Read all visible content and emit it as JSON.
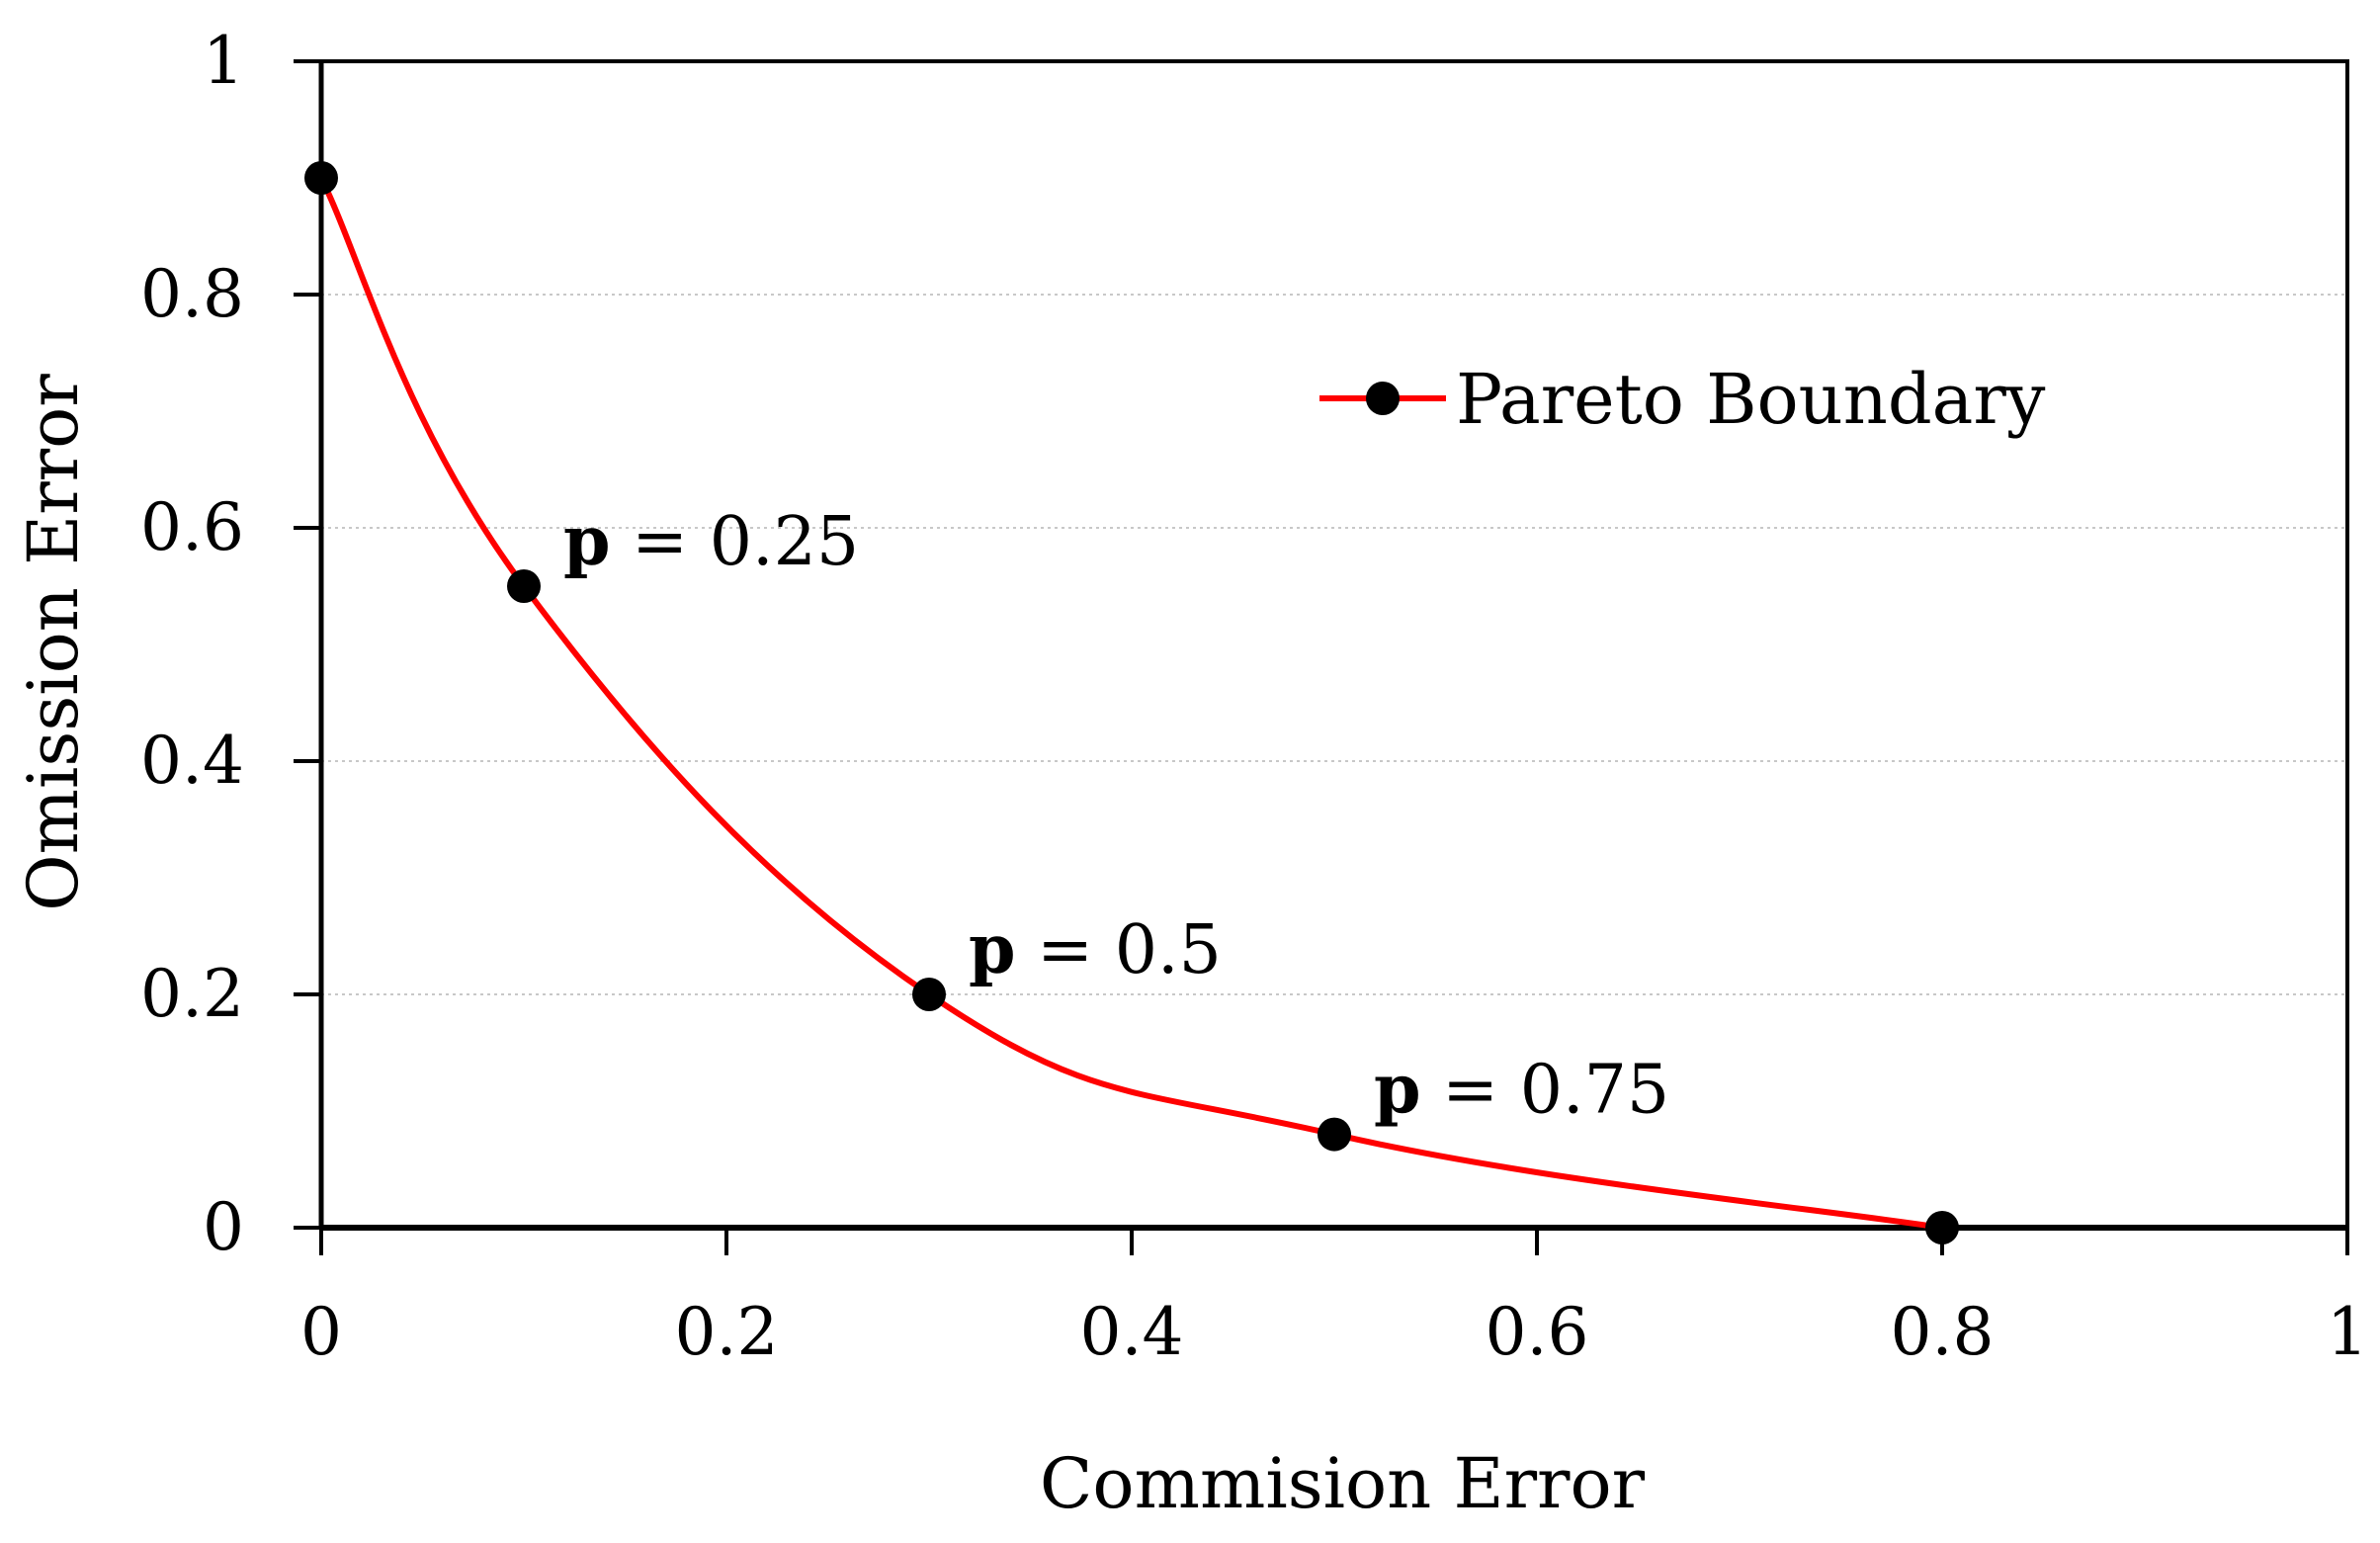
{
  "chart_data": {
    "type": "line",
    "title": "",
    "xlabel": "Commision Error",
    "ylabel": "Omission Error",
    "xlim": [
      0,
      1
    ],
    "ylim": [
      0,
      1
    ],
    "xticks": [
      "0",
      "0.2",
      "0.4",
      "0.6",
      "0.8",
      "1"
    ],
    "yticks": [
      "0",
      "0.2",
      "0.4",
      "0.6",
      "0.8",
      "1"
    ],
    "grid": "horizontal dotted",
    "legend": "top-right",
    "series": [
      {
        "name": "Pareto Boundary",
        "color": "#ff0000",
        "marker_color": "#000000",
        "x": [
          0,
          0.1,
          0.3,
          0.5,
          0.8
        ],
        "y": [
          0.9,
          0.55,
          0.2,
          0.08,
          0
        ]
      }
    ],
    "annotations": [
      {
        "bold": "p",
        "text": " = 0.25",
        "x": 0.1,
        "y": 0.55
      },
      {
        "bold": "p",
        "text": " = 0.5",
        "x": 0.3,
        "y": 0.2
      },
      {
        "bold": "p",
        "text": " = 0.75",
        "x": 0.5,
        "y": 0.08
      }
    ]
  }
}
